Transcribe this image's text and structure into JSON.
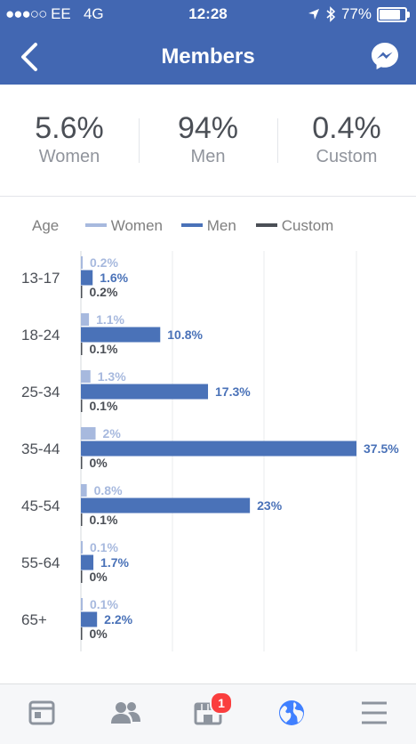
{
  "status_bar": {
    "carrier": "EE",
    "network": "4G",
    "time": "12:28",
    "battery": "77%"
  },
  "nav": {
    "title": "Members"
  },
  "summary": [
    {
      "value": "5.6%",
      "label": "Women"
    },
    {
      "value": "94%",
      "label": "Men"
    },
    {
      "value": "0.4%",
      "label": "Custom"
    }
  ],
  "legend": {
    "title": "Age",
    "items": [
      "Women",
      "Men",
      "Custom"
    ]
  },
  "colors": {
    "women": "#a7b9de",
    "men": "#4a72b8",
    "custom": "#4b4f56",
    "header": "#4267b2",
    "active_tab": "#4080ff"
  },
  "chart_data": {
    "type": "bar",
    "orientation": "horizontal",
    "categories": [
      "13-17",
      "18-24",
      "25-34",
      "35-44",
      "45-54",
      "55-64",
      "65+"
    ],
    "series": [
      {
        "name": "Women",
        "values": [
          0.2,
          1.1,
          1.3,
          2,
          0.8,
          0.1,
          0.1
        ],
        "labels": [
          "0.2%",
          "1.1%",
          "1.3%",
          "2%",
          "0.8%",
          "0.1%",
          "0.1%"
        ]
      },
      {
        "name": "Men",
        "values": [
          1.6,
          10.8,
          17.3,
          37.5,
          23,
          1.7,
          2.2
        ],
        "labels": [
          "1.6%",
          "10.8%",
          "17.3%",
          "37.5%",
          "23%",
          "1.7%",
          "2.2%"
        ]
      },
      {
        "name": "Custom",
        "values": [
          0.2,
          0.1,
          0.1,
          0,
          0.1,
          0,
          0
        ],
        "labels": [
          "0.2%",
          "0.1%",
          "0.1%",
          "0%",
          "0.1%",
          "0%",
          "0%"
        ]
      }
    ],
    "xlim": [
      0,
      37.5
    ],
    "grid": true,
    "legend_position": "top"
  },
  "tabs": [
    {
      "icon": "news-feed-icon"
    },
    {
      "icon": "friends-icon"
    },
    {
      "icon": "marketplace-icon",
      "badge": "1"
    },
    {
      "icon": "globe-icon"
    },
    {
      "icon": "menu-icon"
    }
  ]
}
